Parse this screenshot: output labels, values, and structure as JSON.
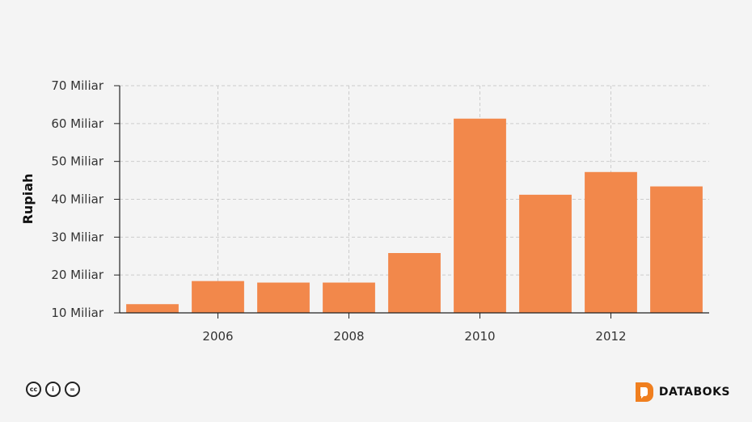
{
  "chart_data": {
    "type": "bar",
    "x": [
      2005,
      2006,
      2007,
      2008,
      2009,
      2010,
      2011,
      2012,
      2013
    ],
    "values": [
      12.3,
      18.4,
      18.0,
      18.0,
      25.8,
      61.3,
      41.2,
      47.2,
      43.4
    ],
    "ylabel": "Rupiah",
    "xlabel": "",
    "ylim": [
      10,
      70
    ],
    "yticks": [
      10,
      20,
      30,
      40,
      50,
      60,
      70
    ],
    "ytick_labels": [
      "10 Miliar",
      "20 Miliar",
      "30 Miliar",
      "40 Miliar",
      "50 Miliar",
      "60 Miliar",
      "70 Miliar"
    ],
    "xticks": [
      2006,
      2008,
      2010,
      2012
    ],
    "xtick_labels": [
      "2006",
      "2008",
      "2010",
      "2012"
    ],
    "grid": true,
    "bar_color": "#f2884b"
  },
  "footer": {
    "license_icons": [
      "cc-icon",
      "by-person-icon",
      "nd-equal-icon"
    ],
    "license_glyphs": [
      "cc",
      "i",
      "="
    ],
    "brand": "DATABOKS",
    "brand_color": "#f07f1f"
  }
}
